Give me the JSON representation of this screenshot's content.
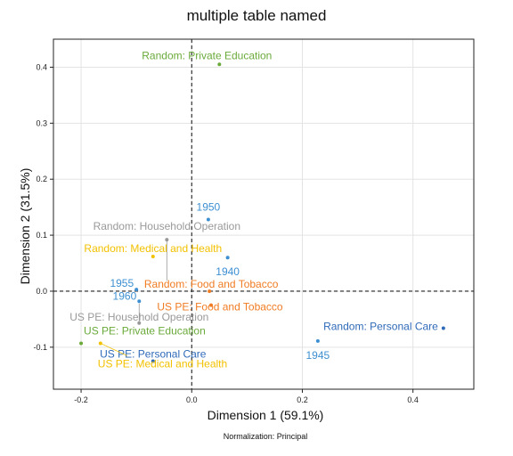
{
  "chart_data": {
    "type": "scatter",
    "title": "multiple table named",
    "xlabel": "Dimension 1 (59.1%)",
    "ylabel": "Dimension 2 (31.5%)",
    "caption": "Normalization: Principal",
    "xlim": [
      -0.25,
      0.51
    ],
    "ylim": [
      -0.175,
      0.45
    ],
    "xticks": [
      -0.2,
      0.0,
      0.2,
      0.4
    ],
    "xtick_labels": [
      "-0.2",
      "0.0",
      "0.2",
      "0.4"
    ],
    "yticks": [
      -0.1,
      0.0,
      0.1,
      0.2,
      0.3,
      0.4
    ],
    "ytick_labels": [
      "-0.1",
      "0.0",
      "0.1",
      "0.2",
      "0.3",
      "0.4"
    ],
    "grid": true,
    "reference_lines": {
      "x": 0,
      "y": 0,
      "style": "dashed"
    },
    "points": [
      {
        "label": "Random: Private Education",
        "x": 0.05,
        "y": 0.405,
        "color": "#6aaa3a"
      },
      {
        "label": "1950",
        "x": 0.03,
        "y": 0.128,
        "color": "#3d8fd1"
      },
      {
        "label": "Random: Household Operation",
        "x": -0.045,
        "y": 0.092,
        "color": "#999999"
      },
      {
        "label": "Random: Medical and Health",
        "x": -0.07,
        "y": 0.062,
        "color": "#f2c100"
      },
      {
        "label": "1940",
        "x": 0.065,
        "y": 0.06,
        "color": "#3d8fd1"
      },
      {
        "label": "1955",
        "x": -0.1,
        "y": 0.003,
        "color": "#3d8fd1"
      },
      {
        "label": "Random: Food and Tobacco",
        "x": 0.032,
        "y": 0.0,
        "color": "#f07c23"
      },
      {
        "label": "1960",
        "x": -0.095,
        "y": -0.018,
        "color": "#3d8fd1"
      },
      {
        "label": "US PE: Food and Tobacco",
        "x": 0.035,
        "y": -0.025,
        "color": "#f07c23"
      },
      {
        "label": "US PE: Household Operation",
        "x": -0.095,
        "y": -0.057,
        "color": "#999999"
      },
      {
        "label": "Random: Personal Care",
        "x": 0.455,
        "y": -0.066,
        "color": "#2f6ab8"
      },
      {
        "label": "1945",
        "x": 0.228,
        "y": -0.089,
        "color": "#3d8fd1"
      },
      {
        "label": "US PE: Private Education",
        "x": -0.2,
        "y": -0.093,
        "color": "#6aaa3a"
      },
      {
        "label": "US PE: Personal Care",
        "x": -0.07,
        "y": -0.125,
        "color": "#2f6ab8"
      },
      {
        "label": "US PE: Medical and Health",
        "x": -0.165,
        "y": -0.093,
        "color": "#f2c100"
      }
    ]
  }
}
